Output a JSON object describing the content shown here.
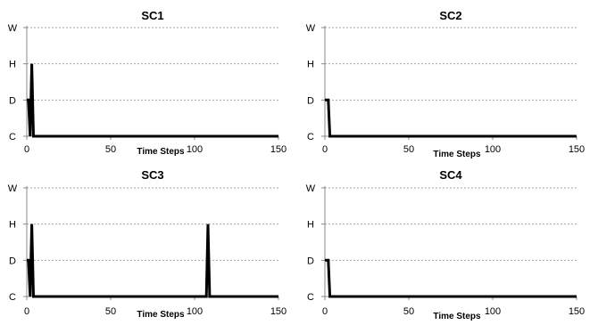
{
  "chart_data": [
    {
      "type": "line",
      "title": "SC1",
      "xlabel": "Time Steps",
      "ylabel": "",
      "xlim": [
        0,
        150
      ],
      "xticks": [
        "0",
        "50",
        "100",
        "150"
      ],
      "y_categories": [
        "C",
        "D",
        "H",
        "W"
      ],
      "grid": true,
      "series": [
        {
          "x": [
            0,
            1,
            2,
            3,
            4,
            5,
            150
          ],
          "y": [
            "D",
            "D",
            "C",
            "H",
            "C",
            "C",
            "C"
          ]
        }
      ]
    },
    {
      "type": "line",
      "title": "SC2",
      "xlabel": "Time Steps",
      "ylabel": "",
      "xlim": [
        0,
        150
      ],
      "xticks": [
        "0",
        "50",
        "100",
        "150"
      ],
      "y_categories": [
        "C",
        "D",
        "H",
        "W"
      ],
      "grid": true,
      "series": [
        {
          "x": [
            0,
            2,
            3,
            150
          ],
          "y": [
            "D",
            "D",
            "C",
            "C"
          ]
        }
      ]
    },
    {
      "type": "line",
      "title": "SC3",
      "xlabel": "Time Steps",
      "ylabel": "",
      "xlim": [
        0,
        150
      ],
      "xticks": [
        "0",
        "50",
        "100",
        "150"
      ],
      "y_categories": [
        "C",
        "D",
        "H",
        "W"
      ],
      "grid": true,
      "series": [
        {
          "x": [
            0,
            1,
            2,
            3,
            4,
            5,
            107,
            108,
            109,
            150
          ],
          "y": [
            "D",
            "D",
            "C",
            "H",
            "C",
            "C",
            "C",
            "H",
            "C",
            "C"
          ]
        }
      ]
    },
    {
      "type": "line",
      "title": "SC4",
      "xlabel": "Time Steps",
      "ylabel": "",
      "xlim": [
        0,
        150
      ],
      "xticks": [
        "0",
        "50",
        "100",
        "150"
      ],
      "y_categories": [
        "C",
        "D",
        "H",
        "W"
      ],
      "grid": true,
      "series": [
        {
          "x": [
            0,
            2,
            3,
            150
          ],
          "y": [
            "D",
            "D",
            "C",
            "C"
          ]
        }
      ]
    }
  ]
}
